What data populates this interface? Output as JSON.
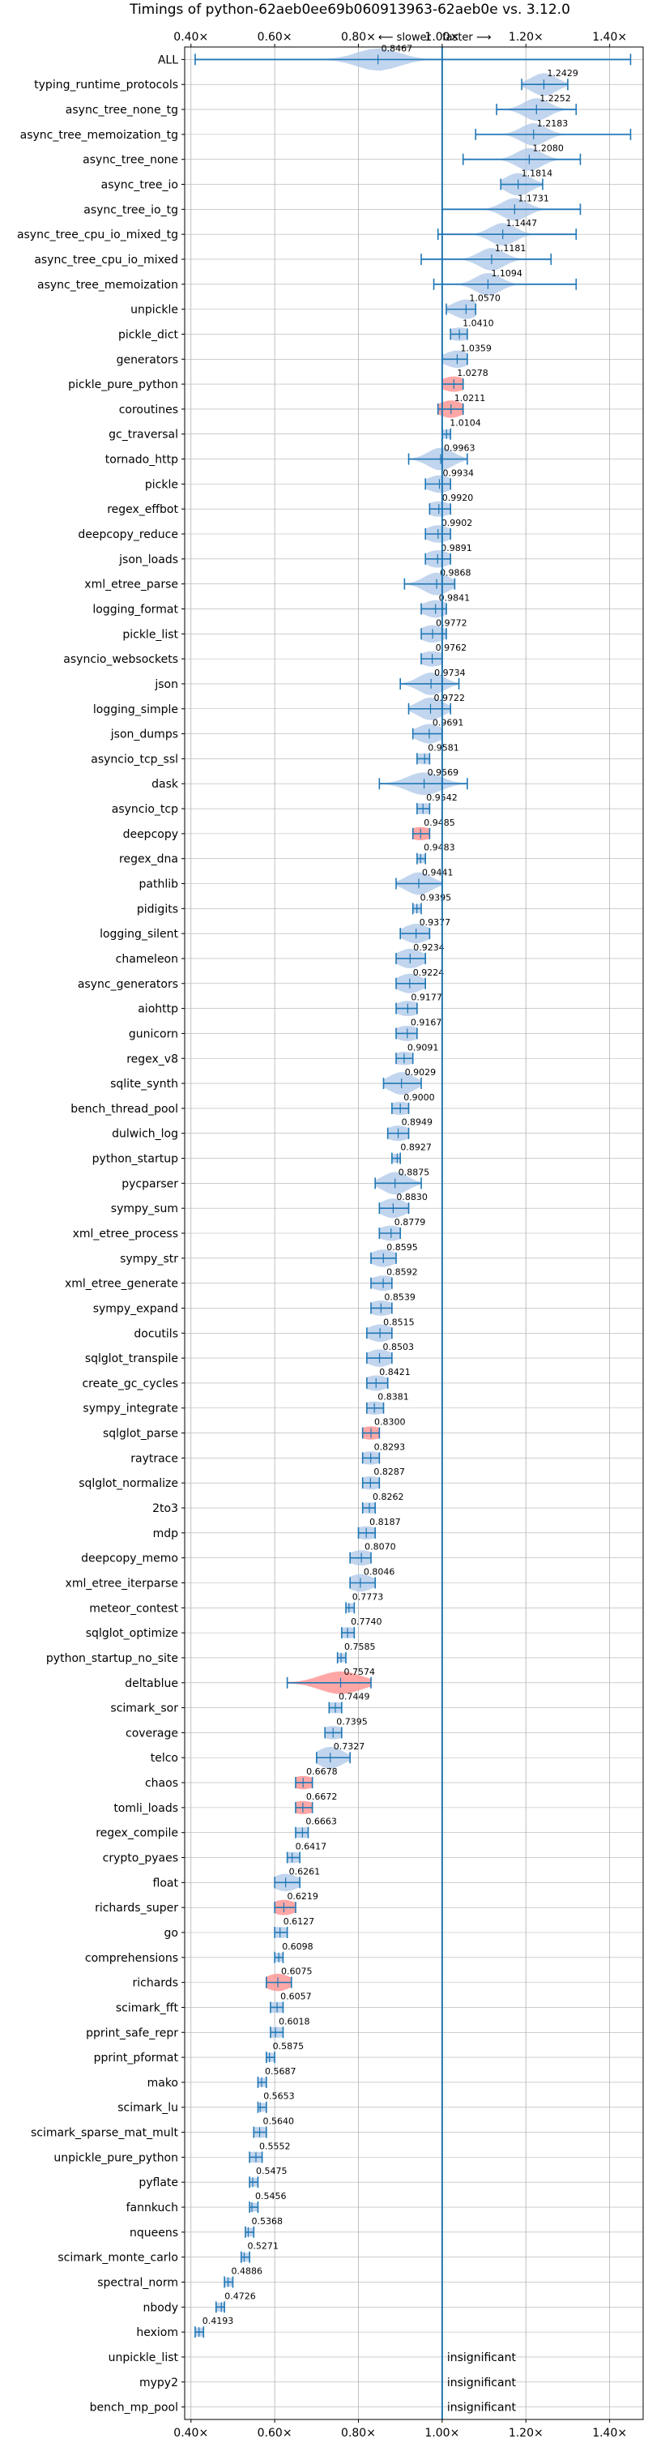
{
  "chart_data": {
    "type": "violin",
    "title": "Timings of python-62aeb0ee69b060913963-62aeb0e vs. 3.12.0",
    "direction_slower": "⟵ slower",
    "direction_faster": "faster ⟶",
    "xlim": [
      0.385,
      1.48
    ],
    "xticks": [
      0.4,
      0.6,
      0.8,
      1.0,
      1.2,
      1.4
    ],
    "xtick_labels": [
      "0.40×",
      "0.60×",
      "0.80×",
      "1.00×",
      "1.20×",
      "1.40×"
    ],
    "reference_line": 1.0,
    "grid": true,
    "colors": {
      "faster": "#1f77b4",
      "slower": "#ff9896",
      "violin": "#aec7e8",
      "grid": "#b0b0b0"
    },
    "insignificant_label": "insignificant",
    "benchmarks": [
      {
        "name": "ALL",
        "value": 0.8467,
        "label": "0.8467",
        "min": 0.41,
        "max": 1.45,
        "spread": 0.05,
        "slower": false
      },
      {
        "name": "typing_runtime_protocols",
        "value": 1.2429,
        "label": "1.2429",
        "min": 1.19,
        "max": 1.3,
        "spread": 0.03,
        "slower": false
      },
      {
        "name": "async_tree_none_tg",
        "value": 1.2252,
        "label": "1.2252",
        "min": 1.13,
        "max": 1.32,
        "spread": 0.03,
        "slower": false
      },
      {
        "name": "async_tree_memoization_tg",
        "value": 1.2183,
        "label": "1.2183",
        "min": 1.08,
        "max": 1.45,
        "spread": 0.03,
        "slower": false
      },
      {
        "name": "async_tree_none",
        "value": 1.208,
        "label": "1.2080",
        "min": 1.05,
        "max": 1.33,
        "spread": 0.03,
        "slower": false
      },
      {
        "name": "async_tree_io",
        "value": 1.1814,
        "label": "1.1814",
        "min": 1.14,
        "max": 1.24,
        "spread": 0.03,
        "slower": false
      },
      {
        "name": "async_tree_io_tg",
        "value": 1.1731,
        "label": "1.1731",
        "min": 1.0,
        "max": 1.33,
        "spread": 0.03,
        "slower": false
      },
      {
        "name": "async_tree_cpu_io_mixed_tg",
        "value": 1.1447,
        "label": "1.1447",
        "min": 0.99,
        "max": 1.32,
        "spread": 0.03,
        "slower": false
      },
      {
        "name": "async_tree_cpu_io_mixed",
        "value": 1.1181,
        "label": "1.1181",
        "min": 0.95,
        "max": 1.26,
        "spread": 0.03,
        "slower": false
      },
      {
        "name": "async_tree_memoization",
        "value": 1.1094,
        "label": "1.1094",
        "min": 0.98,
        "max": 1.32,
        "spread": 0.03,
        "slower": false
      },
      {
        "name": "unpickle",
        "value": 1.057,
        "label": "1.0570",
        "min": 1.01,
        "max": 1.08,
        "spread": 0.03,
        "slower": false
      },
      {
        "name": "pickle_dict",
        "value": 1.041,
        "label": "1.0410",
        "min": 1.02,
        "max": 1.06,
        "spread": 0.03,
        "slower": false
      },
      {
        "name": "generators",
        "value": 1.0359,
        "label": "1.0359",
        "min": 1.0,
        "max": 1.06,
        "spread": 0.03,
        "slower": false
      },
      {
        "name": "pickle_pure_python",
        "value": 1.0278,
        "label": "1.0278",
        "min": 1.0,
        "max": 1.05,
        "spread": 0.03,
        "slower": true
      },
      {
        "name": "coroutines",
        "value": 1.0211,
        "label": "1.0211",
        "min": 0.99,
        "max": 1.05,
        "spread": 0.03,
        "slower": true
      },
      {
        "name": "gc_traversal",
        "value": 1.0104,
        "label": "1.0104",
        "min": 1.0,
        "max": 1.02,
        "spread": 0.03,
        "slower": false
      },
      {
        "name": "tornado_http",
        "value": 0.9963,
        "label": "0.9963",
        "min": 0.92,
        "max": 1.06,
        "spread": 0.03,
        "slower": false
      },
      {
        "name": "pickle",
        "value": 0.9934,
        "label": "0.9934",
        "min": 0.96,
        "max": 1.02,
        "spread": 0.03,
        "slower": false
      },
      {
        "name": "regex_effbot",
        "value": 0.992,
        "label": "0.9920",
        "min": 0.97,
        "max": 1.02,
        "spread": 0.03,
        "slower": false
      },
      {
        "name": "deepcopy_reduce",
        "value": 0.9902,
        "label": "0.9902",
        "min": 0.96,
        "max": 1.02,
        "spread": 0.03,
        "slower": false
      },
      {
        "name": "json_loads",
        "value": 0.9891,
        "label": "0.9891",
        "min": 0.96,
        "max": 1.02,
        "spread": 0.03,
        "slower": false
      },
      {
        "name": "xml_etree_parse",
        "value": 0.9868,
        "label": "0.9868",
        "min": 0.91,
        "max": 1.03,
        "spread": 0.03,
        "slower": false
      },
      {
        "name": "logging_format",
        "value": 0.9841,
        "label": "0.9841",
        "min": 0.95,
        "max": 1.01,
        "spread": 0.03,
        "slower": false
      },
      {
        "name": "pickle_list",
        "value": 0.9772,
        "label": "0.9772",
        "min": 0.95,
        "max": 1.01,
        "spread": 0.03,
        "slower": false
      },
      {
        "name": "asyncio_websockets",
        "value": 0.9762,
        "label": "0.9762",
        "min": 0.95,
        "max": 1.0,
        "spread": 0.03,
        "slower": false
      },
      {
        "name": "json",
        "value": 0.9734,
        "label": "0.9734",
        "min": 0.9,
        "max": 1.04,
        "spread": 0.03,
        "slower": false
      },
      {
        "name": "logging_simple",
        "value": 0.9722,
        "label": "0.9722",
        "min": 0.92,
        "max": 1.02,
        "spread": 0.03,
        "slower": false
      },
      {
        "name": "json_dumps",
        "value": 0.9691,
        "label": "0.9691",
        "min": 0.93,
        "max": 1.0,
        "spread": 0.03,
        "slower": false
      },
      {
        "name": "asyncio_tcp_ssl",
        "value": 0.9581,
        "label": "0.9581",
        "min": 0.94,
        "max": 0.97,
        "spread": 0.03,
        "slower": false
      },
      {
        "name": "dask",
        "value": 0.9569,
        "label": "0.9569",
        "min": 0.85,
        "max": 1.06,
        "spread": 0.04,
        "slower": false
      },
      {
        "name": "asyncio_tcp",
        "value": 0.9542,
        "label": "0.9542",
        "min": 0.94,
        "max": 0.97,
        "spread": 0.03,
        "slower": false
      },
      {
        "name": "deepcopy",
        "value": 0.9485,
        "label": "0.9485",
        "min": 0.93,
        "max": 0.97,
        "spread": 0.03,
        "slower": true
      },
      {
        "name": "regex_dna",
        "value": 0.9483,
        "label": "0.9483",
        "min": 0.94,
        "max": 0.96,
        "spread": 0.03,
        "slower": false
      },
      {
        "name": "pathlib",
        "value": 0.9441,
        "label": "0.9441",
        "min": 0.89,
        "max": 1.0,
        "spread": 0.03,
        "slower": false
      },
      {
        "name": "pidigits",
        "value": 0.9395,
        "label": "0.9395",
        "min": 0.93,
        "max": 0.95,
        "spread": 0.03,
        "slower": false
      },
      {
        "name": "logging_silent",
        "value": 0.9377,
        "label": "0.9377",
        "min": 0.9,
        "max": 0.97,
        "spread": 0.03,
        "slower": false
      },
      {
        "name": "chameleon",
        "value": 0.9234,
        "label": "0.9234",
        "min": 0.89,
        "max": 0.96,
        "spread": 0.03,
        "slower": false
      },
      {
        "name": "async_generators",
        "value": 0.9224,
        "label": "0.9224",
        "min": 0.89,
        "max": 0.96,
        "spread": 0.03,
        "slower": false
      },
      {
        "name": "aiohttp",
        "value": 0.9177,
        "label": "0.9177",
        "min": 0.89,
        "max": 0.94,
        "spread": 0.03,
        "slower": false
      },
      {
        "name": "gunicorn",
        "value": 0.9167,
        "label": "0.9167",
        "min": 0.89,
        "max": 0.94,
        "spread": 0.03,
        "slower": false
      },
      {
        "name": "regex_v8",
        "value": 0.9091,
        "label": "0.9091",
        "min": 0.89,
        "max": 0.93,
        "spread": 0.03,
        "slower": false
      },
      {
        "name": "sqlite_synth",
        "value": 0.9029,
        "label": "0.9029",
        "min": 0.86,
        "max": 0.95,
        "spread": 0.03,
        "slower": false
      },
      {
        "name": "bench_thread_pool",
        "value": 0.9,
        "label": "0.9000",
        "min": 0.88,
        "max": 0.92,
        "spread": 0.03,
        "slower": false
      },
      {
        "name": "dulwich_log",
        "value": 0.8949,
        "label": "0.8949",
        "min": 0.87,
        "max": 0.92,
        "spread": 0.03,
        "slower": false
      },
      {
        "name": "python_startup",
        "value": 0.8927,
        "label": "0.8927",
        "min": 0.88,
        "max": 0.9,
        "spread": 0.03,
        "slower": false
      },
      {
        "name": "pycparser",
        "value": 0.8875,
        "label": "0.8875",
        "min": 0.84,
        "max": 0.95,
        "spread": 0.03,
        "slower": false
      },
      {
        "name": "sympy_sum",
        "value": 0.883,
        "label": "0.8830",
        "min": 0.85,
        "max": 0.92,
        "spread": 0.03,
        "slower": false
      },
      {
        "name": "xml_etree_process",
        "value": 0.8779,
        "label": "0.8779",
        "min": 0.85,
        "max": 0.9,
        "spread": 0.03,
        "slower": false
      },
      {
        "name": "sympy_str",
        "value": 0.8595,
        "label": "0.8595",
        "min": 0.83,
        "max": 0.89,
        "spread": 0.03,
        "slower": false
      },
      {
        "name": "xml_etree_generate",
        "value": 0.8592,
        "label": "0.8592",
        "min": 0.83,
        "max": 0.88,
        "spread": 0.03,
        "slower": false
      },
      {
        "name": "sympy_expand",
        "value": 0.8539,
        "label": "0.8539",
        "min": 0.83,
        "max": 0.88,
        "spread": 0.03,
        "slower": false
      },
      {
        "name": "docutils",
        "value": 0.8515,
        "label": "0.8515",
        "min": 0.82,
        "max": 0.88,
        "spread": 0.03,
        "slower": false
      },
      {
        "name": "sqlglot_transpile",
        "value": 0.8503,
        "label": "0.8503",
        "min": 0.82,
        "max": 0.88,
        "spread": 0.03,
        "slower": false
      },
      {
        "name": "create_gc_cycles",
        "value": 0.8421,
        "label": "0.8421",
        "min": 0.82,
        "max": 0.87,
        "spread": 0.03,
        "slower": false
      },
      {
        "name": "sympy_integrate",
        "value": 0.8381,
        "label": "0.8381",
        "min": 0.82,
        "max": 0.86,
        "spread": 0.03,
        "slower": false
      },
      {
        "name": "sqlglot_parse",
        "value": 0.83,
        "label": "0.8300",
        "min": 0.81,
        "max": 0.85,
        "spread": 0.03,
        "slower": true
      },
      {
        "name": "raytrace",
        "value": 0.8293,
        "label": "0.8293",
        "min": 0.81,
        "max": 0.85,
        "spread": 0.03,
        "slower": false
      },
      {
        "name": "sqlglot_normalize",
        "value": 0.8287,
        "label": "0.8287",
        "min": 0.81,
        "max": 0.85,
        "spread": 0.03,
        "slower": false
      },
      {
        "name": "2to3",
        "value": 0.8262,
        "label": "0.8262",
        "min": 0.81,
        "max": 0.84,
        "spread": 0.03,
        "slower": false
      },
      {
        "name": "mdp",
        "value": 0.8187,
        "label": "0.8187",
        "min": 0.8,
        "max": 0.84,
        "spread": 0.03,
        "slower": false
      },
      {
        "name": "deepcopy_memo",
        "value": 0.807,
        "label": "0.8070",
        "min": 0.78,
        "max": 0.83,
        "spread": 0.03,
        "slower": false
      },
      {
        "name": "xml_etree_iterparse",
        "value": 0.8046,
        "label": "0.8046",
        "min": 0.78,
        "max": 0.84,
        "spread": 0.03,
        "slower": false
      },
      {
        "name": "meteor_contest",
        "value": 0.7773,
        "label": "0.7773",
        "min": 0.77,
        "max": 0.79,
        "spread": 0.03,
        "slower": false
      },
      {
        "name": "sqlglot_optimize",
        "value": 0.774,
        "label": "0.7740",
        "min": 0.76,
        "max": 0.79,
        "spread": 0.03,
        "slower": false
      },
      {
        "name": "python_startup_no_site",
        "value": 0.7585,
        "label": "0.7585",
        "min": 0.75,
        "max": 0.77,
        "spread": 0.03,
        "slower": false
      },
      {
        "name": "deltablue",
        "value": 0.7574,
        "label": "0.7574",
        "min": 0.63,
        "max": 0.83,
        "spread": 0.05,
        "slower": true
      },
      {
        "name": "scimark_sor",
        "value": 0.7449,
        "label": "0.7449",
        "min": 0.73,
        "max": 0.76,
        "spread": 0.03,
        "slower": false
      },
      {
        "name": "coverage",
        "value": 0.7395,
        "label": "0.7395",
        "min": 0.72,
        "max": 0.76,
        "spread": 0.03,
        "slower": false
      },
      {
        "name": "telco",
        "value": 0.7327,
        "label": "0.7327",
        "min": 0.7,
        "max": 0.78,
        "spread": 0.03,
        "slower": false
      },
      {
        "name": "chaos",
        "value": 0.6678,
        "label": "0.6678",
        "min": 0.65,
        "max": 0.69,
        "spread": 0.03,
        "slower": true
      },
      {
        "name": "tomli_loads",
        "value": 0.6672,
        "label": "0.6672",
        "min": 0.65,
        "max": 0.69,
        "spread": 0.03,
        "slower": true
      },
      {
        "name": "regex_compile",
        "value": 0.6663,
        "label": "0.6663",
        "min": 0.65,
        "max": 0.68,
        "spread": 0.03,
        "slower": false
      },
      {
        "name": "crypto_pyaes",
        "value": 0.6417,
        "label": "0.6417",
        "min": 0.63,
        "max": 0.66,
        "spread": 0.03,
        "slower": false
      },
      {
        "name": "float",
        "value": 0.6261,
        "label": "0.6261",
        "min": 0.6,
        "max": 0.66,
        "spread": 0.03,
        "slower": false
      },
      {
        "name": "richards_super",
        "value": 0.6219,
        "label": "0.6219",
        "min": 0.6,
        "max": 0.65,
        "spread": 0.03,
        "slower": true
      },
      {
        "name": "go",
        "value": 0.6127,
        "label": "0.6127",
        "min": 0.6,
        "max": 0.63,
        "spread": 0.03,
        "slower": false
      },
      {
        "name": "comprehensions",
        "value": 0.6098,
        "label": "0.6098",
        "min": 0.6,
        "max": 0.62,
        "spread": 0.03,
        "slower": false
      },
      {
        "name": "richards",
        "value": 0.6075,
        "label": "0.6075",
        "min": 0.58,
        "max": 0.64,
        "spread": 0.03,
        "slower": true
      },
      {
        "name": "scimark_fft",
        "value": 0.6057,
        "label": "0.6057",
        "min": 0.59,
        "max": 0.62,
        "spread": 0.03,
        "slower": false
      },
      {
        "name": "pprint_safe_repr",
        "value": 0.6018,
        "label": "0.6018",
        "min": 0.59,
        "max": 0.62,
        "spread": 0.03,
        "slower": false
      },
      {
        "name": "pprint_pformat",
        "value": 0.5875,
        "label": "0.5875",
        "min": 0.58,
        "max": 0.6,
        "spread": 0.03,
        "slower": false
      },
      {
        "name": "mako",
        "value": 0.5687,
        "label": "0.5687",
        "min": 0.56,
        "max": 0.58,
        "spread": 0.03,
        "slower": false
      },
      {
        "name": "scimark_lu",
        "value": 0.5653,
        "label": "0.5653",
        "min": 0.56,
        "max": 0.58,
        "spread": 0.03,
        "slower": false
      },
      {
        "name": "scimark_sparse_mat_mult",
        "value": 0.564,
        "label": "0.5640",
        "min": 0.55,
        "max": 0.58,
        "spread": 0.03,
        "slower": false
      },
      {
        "name": "unpickle_pure_python",
        "value": 0.5552,
        "label": "0.5552",
        "min": 0.54,
        "max": 0.57,
        "spread": 0.03,
        "slower": false
      },
      {
        "name": "pyflate",
        "value": 0.5475,
        "label": "0.5475",
        "min": 0.54,
        "max": 0.56,
        "spread": 0.03,
        "slower": false
      },
      {
        "name": "fannkuch",
        "value": 0.5456,
        "label": "0.5456",
        "min": 0.54,
        "max": 0.56,
        "spread": 0.03,
        "slower": false
      },
      {
        "name": "nqueens",
        "value": 0.5368,
        "label": "0.5368",
        "min": 0.53,
        "max": 0.55,
        "spread": 0.03,
        "slower": false
      },
      {
        "name": "scimark_monte_carlo",
        "value": 0.5271,
        "label": "0.5271",
        "min": 0.52,
        "max": 0.54,
        "spread": 0.03,
        "slower": false
      },
      {
        "name": "spectral_norm",
        "value": 0.4886,
        "label": "0.4886",
        "min": 0.48,
        "max": 0.5,
        "spread": 0.03,
        "slower": false
      },
      {
        "name": "nbody",
        "value": 0.4726,
        "label": "0.4726",
        "min": 0.46,
        "max": 0.48,
        "spread": 0.03,
        "slower": false
      },
      {
        "name": "hexiom",
        "value": 0.4193,
        "label": "0.4193",
        "min": 0.41,
        "max": 0.43,
        "spread": 0.03,
        "slower": false
      },
      {
        "name": "unpickle_list",
        "insignificant": true
      },
      {
        "name": "mypy2",
        "insignificant": true
      },
      {
        "name": "bench_mp_pool",
        "insignificant": true
      }
    ]
  }
}
